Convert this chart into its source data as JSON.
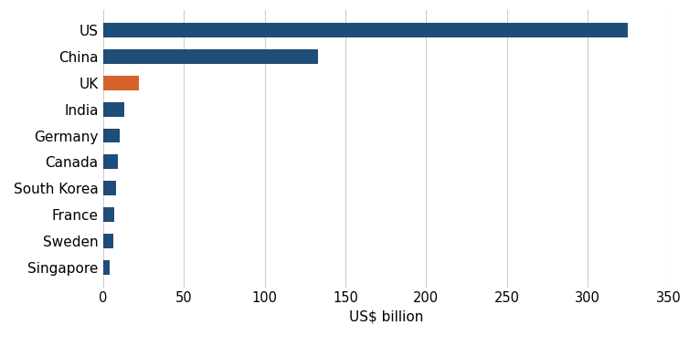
{
  "countries": [
    "Singapore",
    "Sweden",
    "France",
    "South Korea",
    "Canada",
    "Germany",
    "India",
    "UK",
    "China",
    "US"
  ],
  "values": [
    4,
    6,
    7,
    8,
    9,
    10,
    13,
    22,
    133,
    325
  ],
  "colors": [
    "#1e4d78",
    "#1e4d78",
    "#1e4d78",
    "#1e4d78",
    "#1e4d78",
    "#1e4d78",
    "#1e4d78",
    "#d4622a",
    "#1e4d78",
    "#1e4d78"
  ],
  "xlabel": "US$ billion",
  "xlim": [
    0,
    350
  ],
  "xticks": [
    0,
    50,
    100,
    150,
    200,
    250,
    300,
    350
  ],
  "background_color": "#ffffff",
  "grid_color": "#cccccc",
  "bar_height": 0.55,
  "label_fontsize": 11,
  "tick_fontsize": 10.5,
  "ylabel_fontsize": 11
}
